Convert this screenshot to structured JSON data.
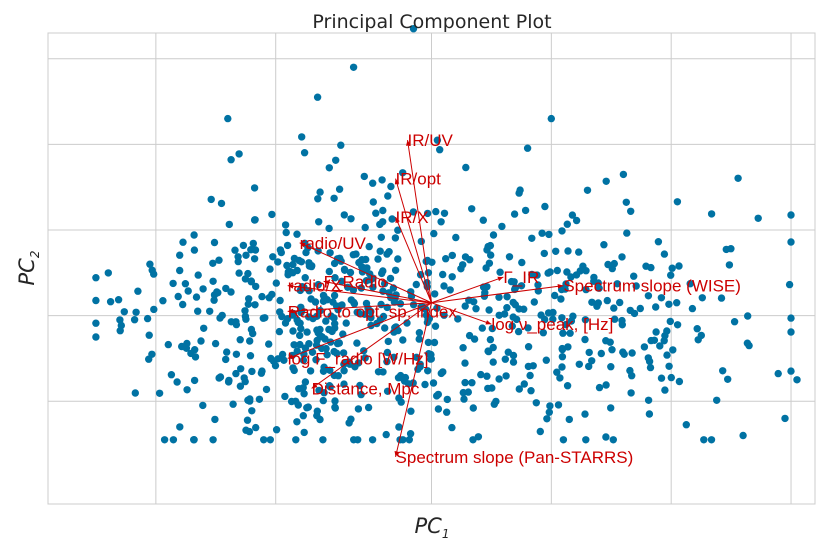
{
  "chart_data": {
    "type": "scatter",
    "title": "Principal Component Plot",
    "xlabel": "PC",
    "xlabel_sub": "1",
    "ylabel": "PC",
    "ylabel_sub": "2",
    "xlim": [
      -3.2,
      3.2
    ],
    "ylim": [
      -2.2,
      3.3
    ],
    "x_gridlines": [
      -2.3,
      -1.3,
      0,
      1,
      2,
      3
    ],
    "y_gridlines": [
      -1,
      0,
      1,
      2,
      3
    ],
    "grid": true,
    "point_color": "#0072a3",
    "loading_color": "#cc0000",
    "n_points": 760,
    "seed": 1729,
    "outliers": [
      {
        "x": -0.15,
        "y": 3.35
      },
      {
        "x": -0.65,
        "y": 2.9
      },
      {
        "x": -0.95,
        "y": 2.55
      },
      {
        "x": -1.7,
        "y": 2.3
      },
      {
        "x": 1.0,
        "y": 2.3
      },
      {
        "x": -2.6,
        "y": -0.05
      },
      {
        "x": -2.8,
        "y": -0.25
      },
      {
        "x": 3.05,
        "y": -0.75
      },
      {
        "x": 2.95,
        "y": -1.2
      },
      {
        "x": 2.6,
        "y": -1.4
      },
      {
        "x": -2.1,
        "y": -1.3
      },
      {
        "x": -1.4,
        "y": -1.45
      },
      {
        "x": -2.35,
        "y": 0.6
      },
      {
        "x": 2.65,
        "y": -0.35
      }
    ],
    "loadings": [
      {
        "label": "IR/UV",
        "x": -0.2,
        "y": 2.05
      },
      {
        "label": "IR/opt",
        "x": -0.3,
        "y": 1.6
      },
      {
        "label": "IR/X",
        "x": -0.3,
        "y": 1.15
      },
      {
        "label": "radio/UV",
        "x": -1.1,
        "y": 0.85
      },
      {
        "label": "Γ_Radio",
        "x": -0.9,
        "y": 0.4
      },
      {
        "label": "radio/X",
        "x": -1.2,
        "y": 0.35
      },
      {
        "label": "Γ_IR",
        "x": 0.6,
        "y": 0.45
      },
      {
        "label": "Spectrum slope (WISE)",
        "x": 1.1,
        "y": 0.35
      },
      {
        "label": "Radio to opt. sp. index",
        "x": -1.2,
        "y": 0.05
      },
      {
        "label": "log ν_peak, [Hz]",
        "x": 0.5,
        "y": -0.1
      },
      {
        "label": "log F_radio [W/Hz]",
        "x": -1.2,
        "y": -0.5
      },
      {
        "label": "Distance, Mpc",
        "x": -1.0,
        "y": -0.85
      },
      {
        "label": "Spectrum slope (Pan-STARRS)",
        "x": -0.3,
        "y": -1.65
      }
    ],
    "loadings_origin": {
      "x": 0.0,
      "y": 0.15
    }
  }
}
